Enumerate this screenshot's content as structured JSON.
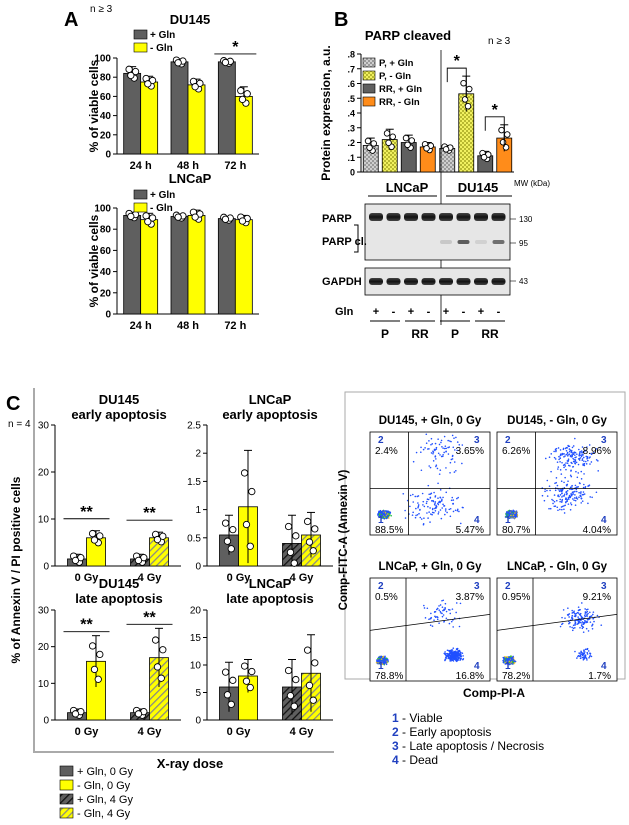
{
  "panel_labels": {
    "A": "A",
    "B": "B",
    "C": "C"
  },
  "notes": {
    "nA": "n ≥ 3",
    "nB": "n ≥ 3",
    "nC": "n = 4"
  },
  "colors": {
    "dark": "#5f5f5f",
    "yellow": "#ffff00",
    "orange": "#ff8c1a",
    "blue": "#2040c0"
  },
  "axis_titles": {
    "viable": "% of viable cells",
    "protein": "Protein expression, a.u.",
    "annexin": "% of Annexin V / PI positive cells",
    "xray": "X-ray dose"
  },
  "legends": {
    "A": [
      "+ Gln",
      "- Gln"
    ],
    "B": [
      "P, + Gln",
      "P, - Gln",
      "RR, + Gln",
      "RR, - Gln"
    ],
    "C": [
      "+ Gln, 0 Gy",
      "- Gln, 0 Gy",
      "+ Gln, 4 Gy",
      "- Gln, 4 Gy"
    ]
  },
  "sig": {
    "star": "*",
    "double": "**"
  },
  "blot": {
    "cell_lines": [
      "LNCaP",
      "DU145"
    ],
    "mw_label": "MW (kDa)",
    "mw_markers": [
      "130",
      "95",
      "43"
    ],
    "bands": [
      "PARP",
      "PARP cl.",
      "GAPDH"
    ],
    "gln_label": "Gln",
    "gln_signs": [
      "+",
      "-",
      "+",
      "-",
      "+",
      "-",
      "+",
      "-"
    ],
    "groups": [
      "P",
      "RR",
      "P",
      "RR"
    ]
  },
  "flow": {
    "x_axis": "Comp-PI-A",
    "y_axis": "Comp-FITC-A (Annexin V)",
    "plots": [
      {
        "title": "DU145, + Gln, 0 Gy",
        "q": [
          "2.4%",
          "3.65%",
          "88.5%",
          "5.47%"
        ]
      },
      {
        "title": "DU145, - Gln, 0 Gy",
        "q": [
          "6.26%",
          "8.96%",
          "80.7%",
          "4.04%"
        ]
      },
      {
        "title": "LNCaP, + Gln, 0 Gy",
        "q": [
          "0.5%",
          "3.87%",
          "78.8%",
          "16.8%"
        ]
      },
      {
        "title": "LNCaP, - Gln, 0 Gy",
        "q": [
          "0.95%",
          "9.21%",
          "78.2%",
          "1.7%"
        ]
      }
    ],
    "quadrant_numbers": [
      "1",
      "2",
      "3",
      "4"
    ],
    "key": [
      {
        "num": "1",
        "text": "- Viable"
      },
      {
        "num": "2",
        "text": "- Early apoptosis"
      },
      {
        "num": "3",
        "text": "- Late apoptosis / Necrosis"
      },
      {
        "num": "4",
        "text": "- Dead"
      }
    ]
  },
  "chart_data": [
    {
      "id": "A-DU145",
      "type": "bar",
      "title": "DU145",
      "ylabel": "% of viable cells",
      "categories": [
        "24 h",
        "48 h",
        "72 h"
      ],
      "ylim": [
        0,
        100
      ],
      "yticks": [
        0,
        20,
        40,
        60,
        80,
        100
      ],
      "series": [
        {
          "name": "+ Gln",
          "values": [
            84,
            96,
            96
          ],
          "err": [
            7,
            3,
            2
          ]
        },
        {
          "name": "- Gln",
          "values": [
            75,
            72,
            60
          ],
          "err": [
            6,
            6,
            10
          ]
        }
      ],
      "sig": [
        {
          "cat": 2,
          "label": "*"
        }
      ]
    },
    {
      "id": "A-LNCaP",
      "type": "bar",
      "title": "LNCaP",
      "ylabel": "% of viable cells",
      "categories": [
        "24 h",
        "48 h",
        "72 h"
      ],
      "ylim": [
        0,
        100
      ],
      "yticks": [
        0,
        20,
        40,
        60,
        80,
        100
      ],
      "series": [
        {
          "name": "+ Gln",
          "values": [
            93,
            92,
            90
          ],
          "err": [
            3,
            2,
            2
          ]
        },
        {
          "name": "- Gln",
          "values": [
            89,
            93,
            89
          ],
          "err": [
            6,
            5,
            4
          ]
        }
      ]
    },
    {
      "id": "B",
      "type": "bar",
      "title": "PARP cleaved",
      "ylabel": "Protein expression, a.u.",
      "categories": [
        "LNCaP",
        "DU145"
      ],
      "ylim": [
        0,
        0.8
      ],
      "yticks": [
        0,
        0.1,
        0.2,
        0.3,
        0.4,
        0.5,
        0.6,
        0.7,
        0.8
      ],
      "series": [
        {
          "name": "P, + Gln",
          "values": [
            0.18,
            0.16
          ],
          "err": [
            0.05,
            0.02
          ]
        },
        {
          "name": "P, - Gln",
          "values": [
            0.22,
            0.53
          ],
          "err": [
            0.07,
            0.12
          ]
        },
        {
          "name": "RR, + Gln",
          "values": [
            0.2,
            0.11
          ],
          "err": [
            0.05,
            0.03
          ]
        },
        {
          "name": "RR, - Gln",
          "values": [
            0.17,
            0.23
          ],
          "err": [
            0.03,
            0.09
          ]
        }
      ],
      "sig": [
        {
          "cat": 1,
          "pair": [
            0,
            1
          ],
          "label": "*"
        },
        {
          "cat": 1,
          "pair": [
            2,
            3
          ],
          "label": "*"
        }
      ]
    },
    {
      "id": "C-DU145-early",
      "type": "bar",
      "title": "DU145 early apoptosis",
      "categories": [
        "0 Gy",
        "4 Gy"
      ],
      "ylim": [
        0,
        30
      ],
      "yticks": [
        0,
        10,
        20,
        30
      ],
      "series": [
        {
          "name": "+ Gln",
          "values": [
            1.5,
            1.5
          ],
          "err": [
            1,
            1
          ]
        },
        {
          "name": "- Gln",
          "values": [
            6,
            6
          ],
          "err": [
            1.5,
            1.2
          ]
        }
      ],
      "sig": [
        {
          "cat": 0,
          "label": "**"
        },
        {
          "cat": 1,
          "label": "**"
        }
      ]
    },
    {
      "id": "C-LNCaP-early",
      "type": "bar",
      "title": "LNCaP early apoptosis",
      "categories": [
        "0 Gy",
        "4 Gy"
      ],
      "ylim": [
        0,
        2.5
      ],
      "yticks": [
        0,
        0.5,
        1,
        1.5,
        2,
        2.5
      ],
      "series": [
        {
          "name": "+ Gln",
          "values": [
            0.55,
            0.4
          ],
          "err": [
            0.35,
            0.5
          ]
        },
        {
          "name": "- Gln",
          "values": [
            1.05,
            0.55
          ],
          "err": [
            1,
            0.4
          ]
        }
      ]
    },
    {
      "id": "C-DU145-late",
      "type": "bar",
      "title": "DU145 late apoptosis",
      "xlabel": "X-ray dose",
      "categories": [
        "0 Gy",
        "4 Gy"
      ],
      "ylim": [
        0,
        30
      ],
      "yticks": [
        0,
        10,
        20,
        30
      ],
      "series": [
        {
          "name": "+ Gln",
          "values": [
            2,
            2
          ],
          "err": [
            1,
            1
          ]
        },
        {
          "name": "- Gln",
          "values": [
            16,
            17
          ],
          "err": [
            7,
            8
          ]
        }
      ],
      "sig": [
        {
          "cat": 0,
          "label": "**"
        },
        {
          "cat": 1,
          "label": "**"
        }
      ]
    },
    {
      "id": "C-LNCaP-late",
      "type": "bar",
      "title": "LNCaP late apoptosis",
      "categories": [
        "0 Gy",
        "4 Gy"
      ],
      "ylim": [
        0,
        20
      ],
      "yticks": [
        0,
        5,
        10,
        15,
        20
      ],
      "series": [
        {
          "name": "+ Gln",
          "values": [
            6,
            6
          ],
          "err": [
            4.5,
            5
          ]
        },
        {
          "name": "- Gln",
          "values": [
            8,
            8.5
          ],
          "err": [
            3,
            7
          ]
        }
      ]
    }
  ]
}
